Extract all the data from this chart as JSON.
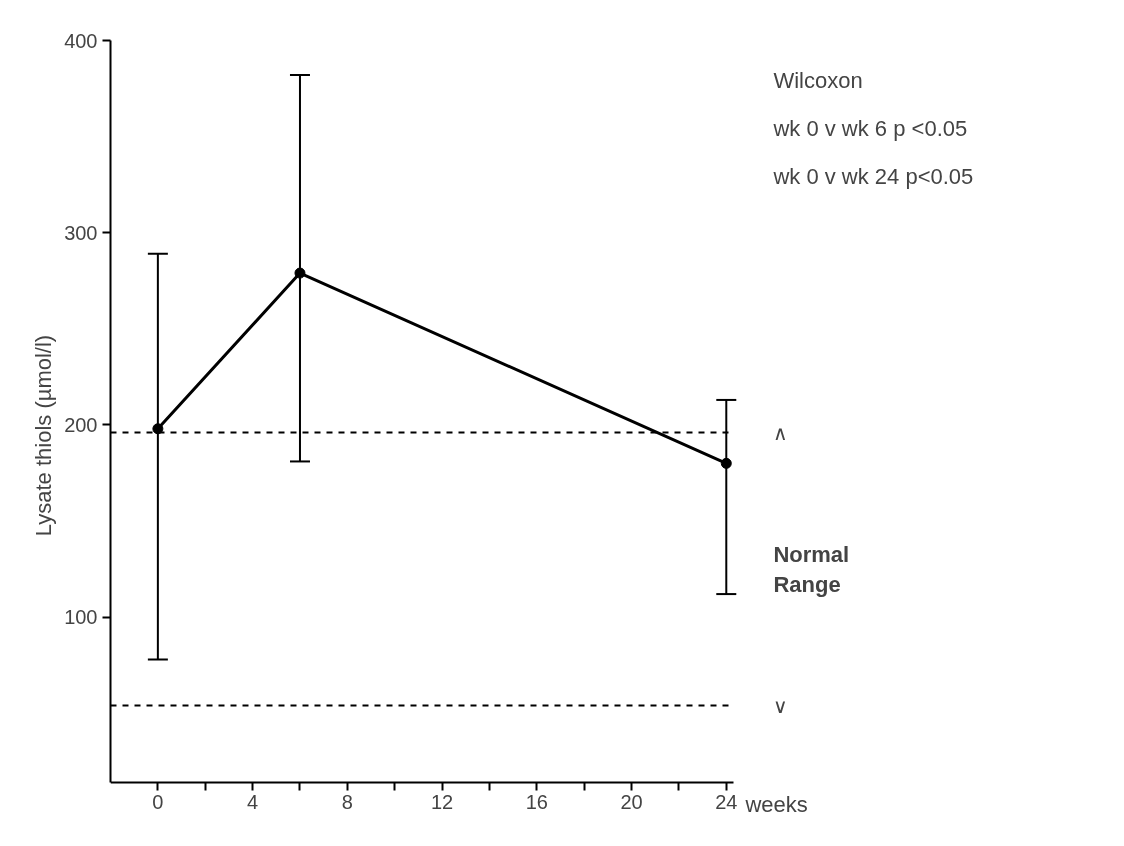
{
  "chart_data": {
    "type": "line",
    "x": [
      0,
      6,
      24
    ],
    "series": [
      {
        "color": "#000000",
        "values": [
          198,
          279,
          180
        ],
        "errors": [
          [
            78,
            289
          ],
          [
            181,
            382
          ],
          [
            112,
            213
          ]
        ]
      }
    ],
    "xlabel": "weeks",
    "ylabel": "Lysate thiols (µmol/l)",
    "xlim": [
      -2,
      24.3
    ],
    "ylim": [
      14,
      400
    ],
    "xticks": [
      0,
      {
        "value": 2,
        "label": null
      },
      4,
      {
        "value": 6,
        "label": null
      },
      8,
      {
        "value": 10,
        "label": null
      },
      12,
      {
        "value": 14,
        "label": null
      },
      16,
      {
        "value": 18,
        "label": null
      },
      20,
      {
        "value": 22,
        "label": null
      },
      24
    ],
    "yticks": [
      100,
      200,
      300,
      400
    ],
    "ref_lines": [
      {
        "axis": "y",
        "value": 196,
        "label": "∧",
        "line_style": "dashed",
        "color": "#000000"
      },
      {
        "axis": "y",
        "value": 54,
        "label": "∨",
        "line_style": "dashed",
        "color": "#000000"
      }
    ],
    "annotations": [
      "Wilcoxon",
      "wk 0 v wk 6 p <0.05",
      "wk 0 v wk 24 p<0.05",
      "Normal Range"
    ],
    "marker": "circle",
    "line_style": "solid",
    "grid": false
  }
}
